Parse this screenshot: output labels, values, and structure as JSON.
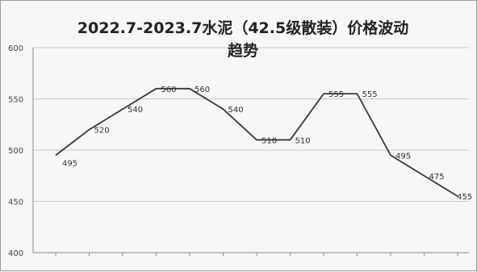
{
  "chart_data": {
    "type": "line",
    "title_line1": "2022.7-2023.7水泥（42.5级散装）价格波动",
    "title_line2": "趋势",
    "x_tick_labels": [
      "",
      "",
      "",
      "",
      "",
      "",
      "",
      "",
      "",
      "",
      "",
      "",
      ""
    ],
    "values": [
      495,
      520,
      540,
      560,
      560,
      540,
      510,
      510,
      555,
      555,
      495,
      475,
      455
    ],
    "data_labels": [
      "495",
      "520",
      "540",
      "560",
      "560",
      "540",
      "510",
      "510",
      "555",
      "555",
      "495",
      "475",
      "455"
    ],
    "y_ticks": [
      400,
      450,
      500,
      550,
      600
    ],
    "ylim": [
      400,
      600
    ],
    "grid": true,
    "legend": "none",
    "line_color": "#3a3a3a",
    "grid_color": "#c9c9c9"
  }
}
